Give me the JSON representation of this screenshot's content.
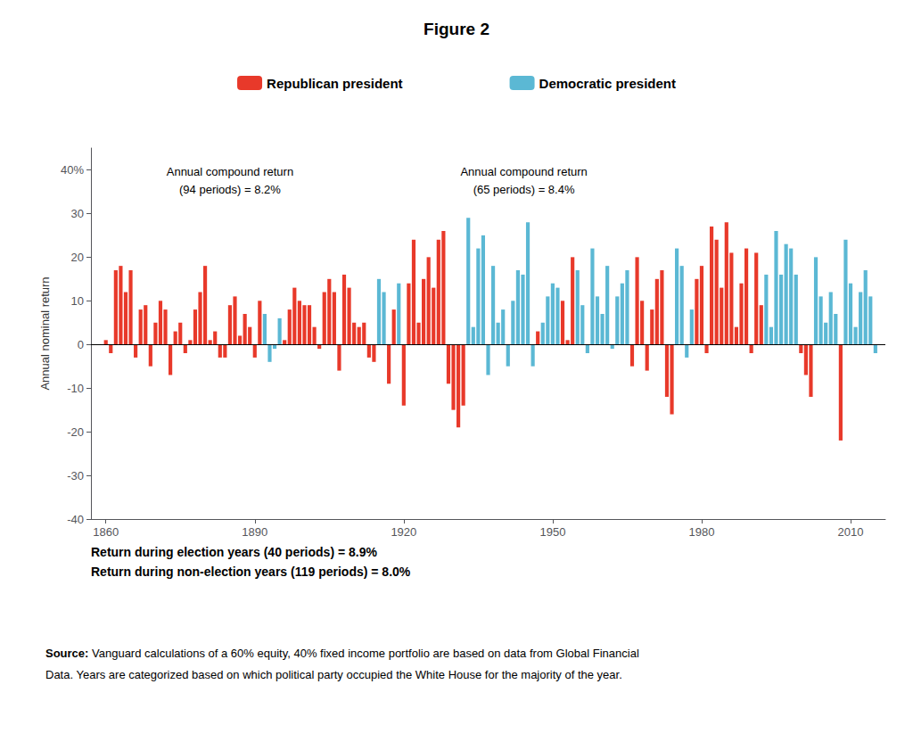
{
  "chart_data": {
    "type": "bar",
    "title": "Figure 2",
    "ylabel": "Annual nominal return",
    "x": [
      1860,
      1861,
      1862,
      1863,
      1864,
      1865,
      1866,
      1867,
      1868,
      1869,
      1870,
      1871,
      1872,
      1873,
      1874,
      1875,
      1876,
      1877,
      1878,
      1879,
      1880,
      1881,
      1882,
      1883,
      1884,
      1885,
      1886,
      1887,
      1888,
      1889,
      1890,
      1891,
      1892,
      1893,
      1894,
      1895,
      1896,
      1897,
      1898,
      1899,
      1900,
      1901,
      1902,
      1903,
      1904,
      1905,
      1906,
      1907,
      1908,
      1909,
      1910,
      1911,
      1912,
      1913,
      1914,
      1915,
      1916,
      1917,
      1918,
      1919,
      1920,
      1921,
      1922,
      1923,
      1924,
      1925,
      1926,
      1927,
      1928,
      1929,
      1930,
      1931,
      1932,
      1933,
      1934,
      1935,
      1936,
      1937,
      1938,
      1939,
      1940,
      1941,
      1942,
      1943,
      1944,
      1945,
      1946,
      1947,
      1948,
      1949,
      1950,
      1951,
      1952,
      1953,
      1954,
      1955,
      1956,
      1957,
      1958,
      1959,
      1960,
      1961,
      1962,
      1963,
      1964,
      1965,
      1966,
      1967,
      1968,
      1969,
      1970,
      1971,
      1972,
      1973,
      1974,
      1975,
      1976,
      1977,
      1978,
      1979,
      1980,
      1981,
      1982,
      1983,
      1984,
      1985,
      1986,
      1987,
      1988,
      1989,
      1990,
      1991,
      1992,
      1993,
      1994,
      1995,
      1996,
      1997,
      1998,
      1999,
      2000,
      2001,
      2002,
      2003,
      2004,
      2005,
      2006,
      2007,
      2008,
      2009,
      2010,
      2011,
      2012,
      2013,
      2014,
      2015
    ],
    "series": [
      {
        "name": "Republican president",
        "color": "#E8392A",
        "values": [
          1.0,
          -2.0,
          17.0,
          18.0,
          12.0,
          17.0,
          -3.0,
          8.0,
          9.0,
          -5.0,
          5.0,
          10.0,
          8.0,
          -7.0,
          3.0,
          5.0,
          -2.0,
          1.0,
          8.0,
          12.0,
          18.0,
          1.0,
          3.0,
          -3.0,
          -3.0,
          9.0,
          11.0,
          2.0,
          7.0,
          4.0,
          -3.0,
          10.0,
          null,
          null,
          null,
          null,
          1.0,
          8.0,
          13.0,
          10.0,
          9.0,
          9.0,
          4.0,
          -1.0,
          12.0,
          15.0,
          12.0,
          -6.0,
          16.0,
          13.0,
          5.0,
          4.0,
          5.0,
          -3.0,
          -4.0,
          null,
          null,
          -9.0,
          8.0,
          null,
          -14.0,
          14.0,
          24.0,
          5.0,
          15.0,
          20.0,
          13.0,
          24.0,
          26.0,
          -9.0,
          -15.0,
          -19.0,
          -14.0,
          null,
          null,
          null,
          null,
          null,
          null,
          null,
          null,
          null,
          null,
          null,
          null,
          null,
          null,
          3.0,
          null,
          null,
          null,
          null,
          10.0,
          1.0,
          20.0,
          null,
          null,
          null,
          null,
          null,
          null,
          null,
          null,
          null,
          null,
          null,
          -5.0,
          20.0,
          10.0,
          -6.0,
          8.0,
          15.0,
          17.0,
          -12.0,
          -16.0,
          null,
          null,
          null,
          null,
          15.0,
          18.0,
          -2.0,
          27.0,
          24.0,
          13.0,
          28.0,
          21.0,
          4.0,
          14.0,
          22.0,
          -2.0,
          21.0,
          9.0,
          null,
          null,
          null,
          null,
          null,
          null,
          null,
          -2.0,
          -7.0,
          -12.0,
          null,
          null,
          null,
          null,
          null,
          -22.0,
          null,
          null,
          null,
          null,
          null,
          null,
          null
        ]
      },
      {
        "name": "Democratic president",
        "color": "#5BB8D4",
        "values": [
          null,
          null,
          null,
          null,
          null,
          null,
          null,
          null,
          null,
          null,
          null,
          null,
          null,
          null,
          null,
          null,
          null,
          null,
          null,
          null,
          null,
          null,
          null,
          null,
          null,
          null,
          null,
          null,
          null,
          null,
          null,
          null,
          7.0,
          -4.0,
          -1.0,
          6.0,
          null,
          null,
          null,
          null,
          null,
          null,
          null,
          null,
          null,
          null,
          null,
          null,
          null,
          null,
          null,
          null,
          null,
          null,
          null,
          15.0,
          12.0,
          null,
          null,
          14.0,
          null,
          null,
          null,
          null,
          null,
          null,
          null,
          null,
          null,
          null,
          null,
          null,
          null,
          29.0,
          4.0,
          22.0,
          25.0,
          -7.0,
          18.0,
          5.0,
          8.0,
          -5.0,
          10.0,
          17.0,
          16.0,
          28.0,
          -5.0,
          null,
          5.0,
          11.0,
          14.0,
          13.0,
          null,
          null,
          null,
          17.0,
          9.0,
          -2.0,
          22.0,
          11.0,
          7.0,
          18.0,
          -1.0,
          11.0,
          14.0,
          17.0,
          null,
          null,
          null,
          null,
          null,
          null,
          null,
          null,
          null,
          22.0,
          18.0,
          -3.0,
          8.0,
          null,
          null,
          null,
          null,
          null,
          null,
          null,
          null,
          null,
          null,
          null,
          null,
          null,
          null,
          16.0,
          4.0,
          26.0,
          16.0,
          23.0,
          22.0,
          16.0,
          null,
          null,
          null,
          20.0,
          11.0,
          5.0,
          12.0,
          7.0,
          null,
          24.0,
          14.0,
          4.0,
          12.0,
          17.0,
          11.0,
          -2.0
        ]
      }
    ],
    "xlim": [
      1857,
      2017
    ],
    "xticks": [
      1860,
      1890,
      1920,
      1950,
      1980,
      2010
    ],
    "ylim": [
      -40,
      45
    ],
    "yticks": [
      -40,
      -30,
      -20,
      -10,
      0,
      10,
      20,
      30,
      {
        "value": 40,
        "label": "40%"
      }
    ],
    "grid": false,
    "legend": "top",
    "annotations": [
      [
        "Annual compound return",
        "(94 periods) = 8.2%"
      ],
      [
        "Annual compound return",
        "(65 periods) = 8.4%"
      ]
    ],
    "notes": [
      "Return during election years (40 periods) = 8.9%",
      "Return during non-election years (119 periods) = 8.0%"
    ],
    "source": [
      "Source:",
      "Vanguard calculations of a 60% equity, 40% fixed income portfolio are based on data from Global Financial",
      "Data. Years are categorized based on which political party occupied the White House for the majority of the year."
    ]
  }
}
